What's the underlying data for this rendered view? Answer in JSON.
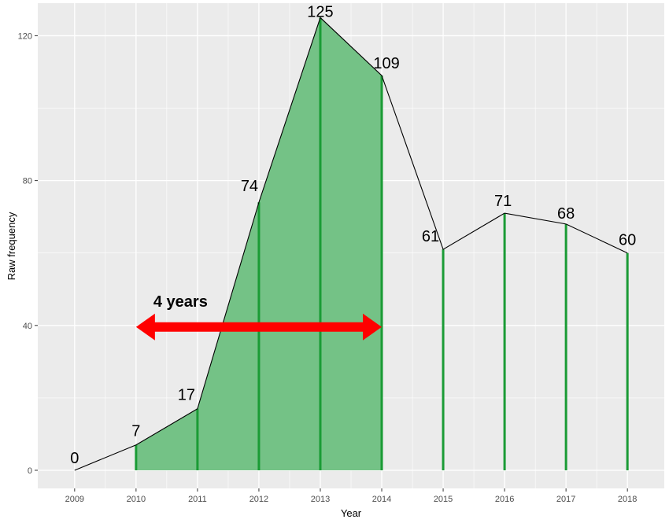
{
  "chart_data": {
    "type": "area",
    "title": "",
    "xlabel": "Year",
    "ylabel": "Raw frequency",
    "x": [
      2009,
      2010,
      2011,
      2012,
      2013,
      2014,
      2015,
      2016,
      2017,
      2018
    ],
    "values": [
      0,
      7,
      17,
      74,
      125,
      109,
      61,
      71,
      68,
      60
    ],
    "data_labels": [
      "0",
      "7",
      "17",
      "74",
      "125",
      "109",
      "61",
      "71",
      "68",
      "60"
    ],
    "x_tick_labels": [
      "2009",
      "2010",
      "2011",
      "2012",
      "2013",
      "2014",
      "2015",
      "2016",
      "2017",
      "2018"
    ],
    "y_ticks": [
      0,
      40,
      80,
      120
    ],
    "y_tick_labels": [
      "0",
      "40",
      "80",
      "120"
    ],
    "ylim": [
      -5,
      129
    ],
    "xlim": [
      2008.4,
      2018.6
    ],
    "grid": true,
    "shaded_range": [
      2010,
      2014
    ],
    "annotation": {
      "text": "4 years",
      "from": 2010,
      "to": 2014,
      "y": 40
    },
    "colors": {
      "panel": "#ebebeb",
      "grid": "#ffffff",
      "fill": "#74c286",
      "line": "#000000",
      "stem": "#1a9b35",
      "arrow": "#ff0000"
    }
  }
}
